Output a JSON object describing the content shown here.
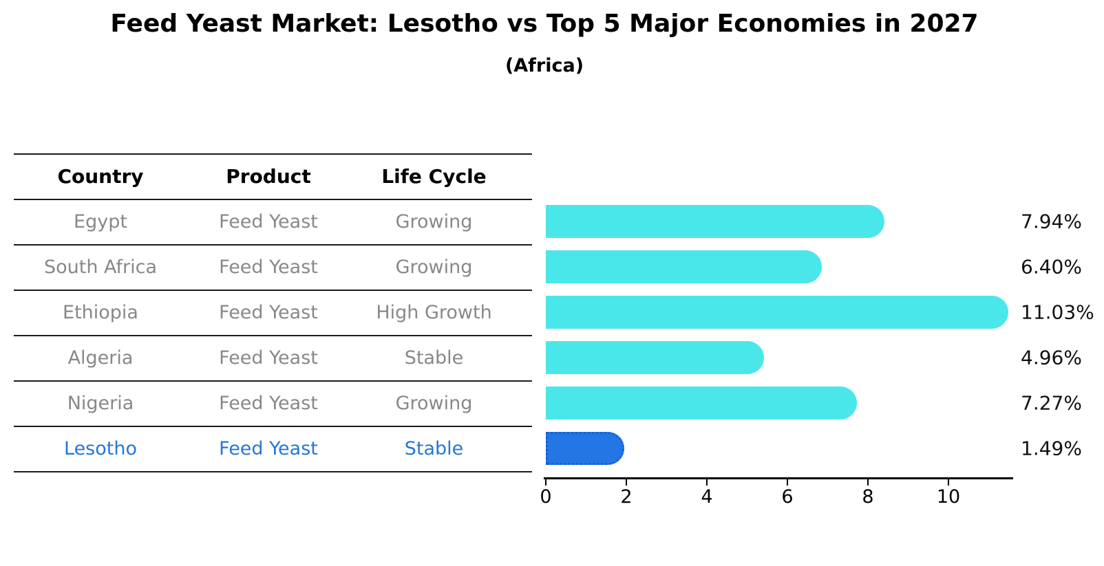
{
  "title": "Feed Yeast Market: Lesotho vs Top 5 Major Economies in 2027",
  "subtitle": "(Africa)",
  "table": {
    "headers": [
      "Country",
      "Product",
      "Life Cycle"
    ],
    "rows": [
      {
        "country": "Egypt",
        "product": "Feed Yeast",
        "life_cycle": "Growing"
      },
      {
        "country": "South Africa",
        "product": "Feed Yeast",
        "life_cycle": "Growing"
      },
      {
        "country": "Ethiopia",
        "product": "Feed Yeast",
        "life_cycle": "High Growth"
      },
      {
        "country": "Algeria",
        "product": "Feed Yeast",
        "life_cycle": "Stable"
      },
      {
        "country": "Nigeria",
        "product": "Feed Yeast",
        "life_cycle": "Growing"
      },
      {
        "country": "Lesotho",
        "product": "Feed Yeast",
        "life_cycle": "Stable"
      }
    ],
    "highlight_row": "Lesotho"
  },
  "chart_data": {
    "type": "bar",
    "orientation": "horizontal",
    "categories": [
      "Egypt",
      "South Africa",
      "Ethiopia",
      "Algeria",
      "Nigeria",
      "Lesotho"
    ],
    "values": [
      7.94,
      6.4,
      11.03,
      4.96,
      7.27,
      1.49
    ],
    "value_labels": [
      "7.94%",
      "6.40%",
      "11.03%",
      "4.96%",
      "7.27%",
      "1.49%"
    ],
    "x_ticks": [
      0,
      2,
      4,
      6,
      8,
      10
    ],
    "xlim": [
      0,
      11.6
    ],
    "grid": false,
    "legend": "none",
    "highlight_category": "Lesotho",
    "colors": {
      "bar": "#4AE7EA",
      "highlight_bar": "#2376E3",
      "highlight_border": "#1560D8",
      "highlight_text": "#2477D6",
      "row_text": "#888888",
      "header_text": "#000000",
      "axis": "#000000"
    }
  }
}
